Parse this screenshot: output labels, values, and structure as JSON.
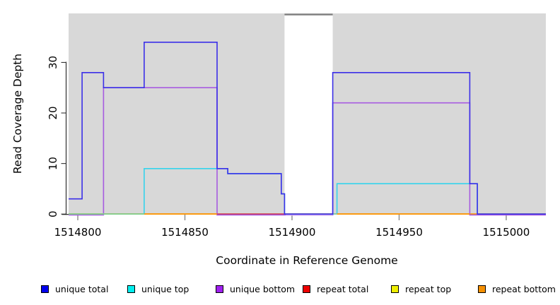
{
  "chart_data": {
    "type": "line",
    "subtype": "step-coverage-plot",
    "title": "",
    "xlabel": "Coordinate in Reference Genome",
    "ylabel": "Read Coverage Depth",
    "xlim": [
      1514795.7,
      1515018.5
    ],
    "ylim": [
      0,
      39.7
    ],
    "grid": "off",
    "legend_position": "bottom",
    "x_ticks": [
      {
        "value": 1514800,
        "label": "1514800"
      },
      {
        "value": 1514850,
        "label": "1514850"
      },
      {
        "value": 1514900,
        "label": "1514900"
      },
      {
        "value": 1514950,
        "label": "1514950"
      },
      {
        "value": 1515000,
        "label": "1515000"
      }
    ],
    "y_ticks": [
      {
        "value": 0,
        "label": "0"
      },
      {
        "value": 10,
        "label": "10"
      },
      {
        "value": 20,
        "label": "20"
      },
      {
        "value": 30,
        "label": "30"
      }
    ],
    "covered_regions": [
      {
        "from": 1514795.7,
        "to": 1514896.5
      },
      {
        "from": 1514919.0,
        "to": 1515018.5
      }
    ],
    "uncovered_gap": {
      "from": 1514896.5,
      "to": 1514919.0
    },
    "region_fill": "#D8D8D8",
    "gap_topline_color": "#7F7F7F",
    "series": [
      {
        "name": "repeat total",
        "color": "#E02020",
        "baseline_shift": 0,
        "points": [
          [
            1514795.7,
            0
          ],
          [
            1515018.5,
            0
          ]
        ]
      },
      {
        "name": "repeat top",
        "color": "#EDED00",
        "baseline_shift": 0,
        "points": [
          [
            1514795.7,
            0
          ],
          [
            1515018.5,
            0
          ]
        ]
      },
      {
        "name": "repeat bottom",
        "color": "#FF9400",
        "baseline_shift": 0,
        "points": [
          [
            1514795.7,
            0
          ],
          [
            1515018.5,
            0
          ]
        ]
      },
      {
        "name": "unique bottom",
        "color": "#A75BE0",
        "baseline_shift": 1.3,
        "points": [
          [
            1514795.7,
            0
          ],
          [
            1514812,
            0
          ],
          [
            1514812,
            25
          ],
          [
            1514865,
            25
          ],
          [
            1514865,
            0
          ],
          [
            1514919,
            0
          ],
          [
            1514919,
            22
          ],
          [
            1514983,
            22
          ],
          [
            1514983,
            0
          ],
          [
            1515018.5,
            0
          ]
        ]
      },
      {
        "name": "unique top",
        "color": "#35D3EC",
        "baseline_shift": 0,
        "points": [
          [
            1514795.7,
            0
          ],
          [
            1514831,
            0
          ],
          [
            1514831,
            9
          ],
          [
            1514870,
            9
          ],
          [
            1514870,
            8
          ],
          [
            1514895,
            8
          ],
          [
            1514895,
            4
          ],
          [
            1514896.5,
            4
          ],
          [
            1514896.5,
            0
          ],
          [
            1514921,
            0
          ],
          [
            1514921,
            6
          ],
          [
            1514986.5,
            6
          ],
          [
            1514986.5,
            0
          ],
          [
            1515018.5,
            0
          ]
        ]
      },
      {
        "name": "unique total",
        "color": "#3B2FE8",
        "baseline_shift": 0,
        "points": [
          [
            1514795.7,
            3
          ],
          [
            1514802,
            3
          ],
          [
            1514802,
            28
          ],
          [
            1514812,
            28
          ],
          [
            1514812,
            25
          ],
          [
            1514831,
            25
          ],
          [
            1514831,
            34
          ],
          [
            1514865,
            34
          ],
          [
            1514865,
            9
          ],
          [
            1514870,
            9
          ],
          [
            1514870,
            8
          ],
          [
            1514895,
            8
          ],
          [
            1514895,
            4
          ],
          [
            1514896.5,
            4
          ],
          [
            1514896.5,
            0
          ],
          [
            1514919,
            0
          ],
          [
            1514919,
            28
          ],
          [
            1514983,
            28
          ],
          [
            1514983,
            6
          ],
          [
            1514986.5,
            6
          ],
          [
            1514986.5,
            0
          ],
          [
            1515018.5,
            0
          ]
        ]
      }
    ],
    "baseline_segments": [
      {
        "from": 1514795.7,
        "to": 1514831,
        "color": "#7FD08C",
        "dy": 0
      },
      {
        "from": 1514831,
        "to": 1514865,
        "color": "#FF9400",
        "dy": 0
      },
      {
        "from": 1514865,
        "to": 1514897,
        "color": "#C23A78",
        "dy": 0
      },
      {
        "from": 1514897,
        "to": 1514919,
        "color": "#C7A4EE",
        "dy": 1.4
      },
      {
        "from": 1514919.5,
        "to": 1514921,
        "color": "#86CFA6",
        "dy": 0
      },
      {
        "from": 1514921,
        "to": 1514983,
        "color": "#FF9400",
        "dy": 0
      }
    ]
  },
  "legend": {
    "items": [
      {
        "label": "unique total",
        "color": "#0000EE"
      },
      {
        "label": "unique top",
        "color": "#00EEEE"
      },
      {
        "label": "unique bottom",
        "color": "#A020F0"
      },
      {
        "label": "repeat total",
        "color": "#EE0000"
      },
      {
        "label": "repeat top",
        "color": "#EEEE00"
      },
      {
        "label": "repeat bottom",
        "color": "#F59000"
      }
    ]
  }
}
